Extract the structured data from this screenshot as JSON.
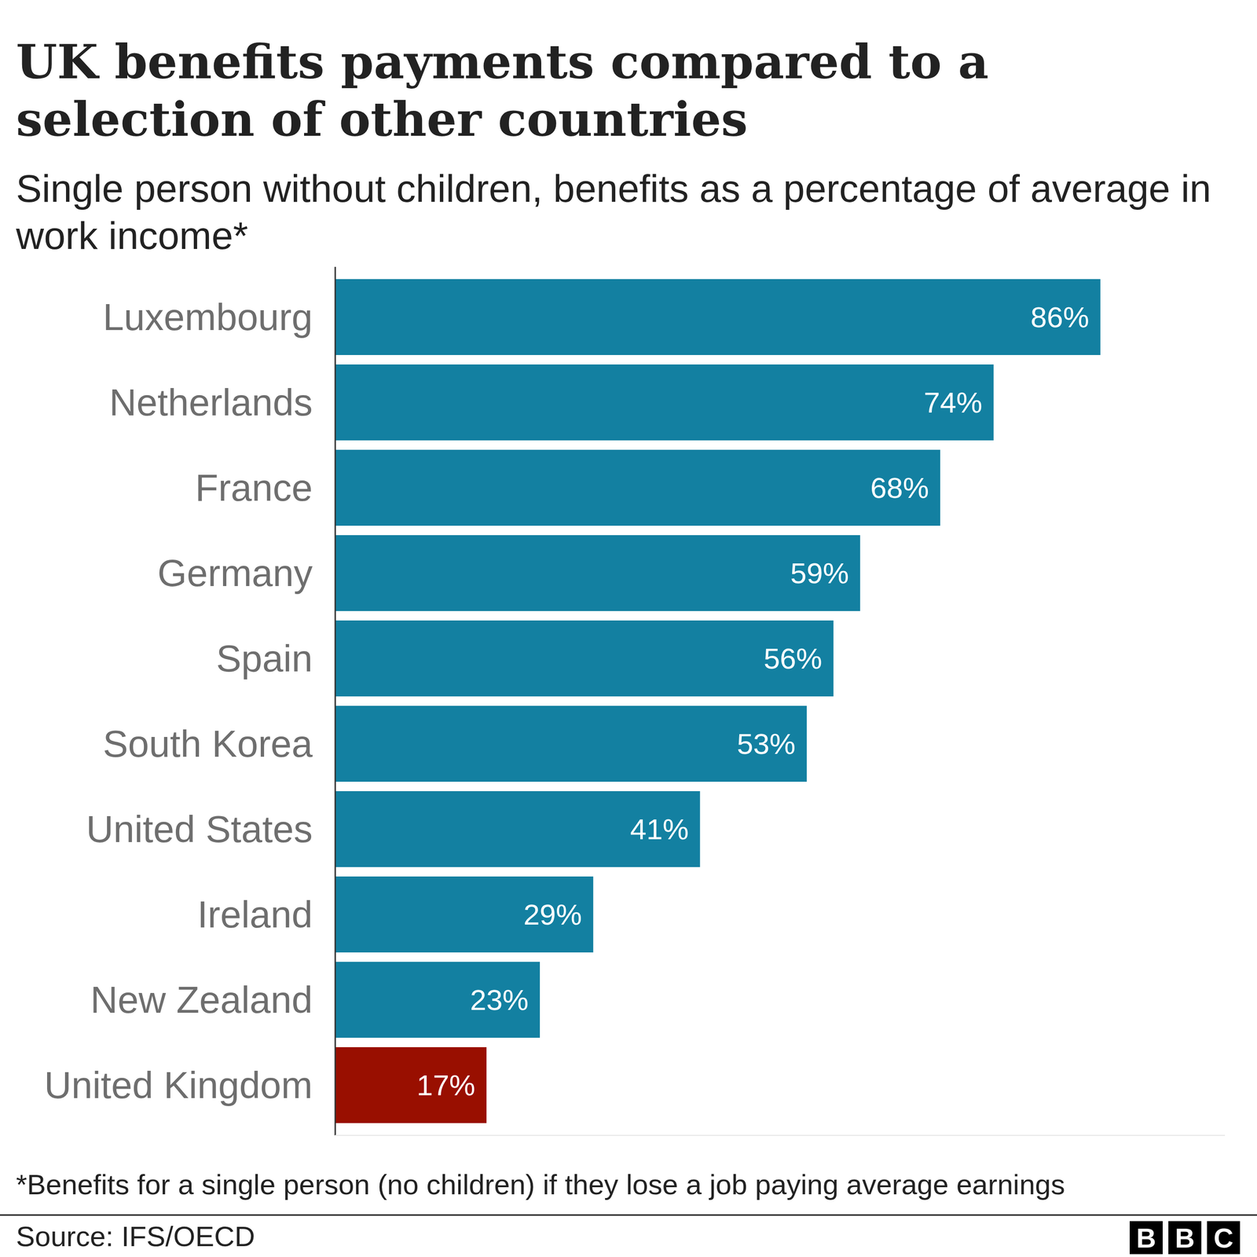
{
  "chart_data": {
    "type": "bar",
    "orientation": "horizontal",
    "title": "UK benefits payments compared to a selection of other countries",
    "subtitle": "Single person without children, benefits as a percentage of average in work income*",
    "categories": [
      "Luxembourg",
      "Netherlands",
      "France",
      "Germany",
      "Spain",
      "South Korea",
      "United States",
      "Ireland",
      "New Zealand",
      "United Kingdom"
    ],
    "values": [
      86,
      74,
      68,
      59,
      56,
      53,
      41,
      29,
      23,
      17
    ],
    "value_labels": [
      "86%",
      "74%",
      "68%",
      "59%",
      "56%",
      "53%",
      "41%",
      "29%",
      "23%",
      "17%"
    ],
    "colors": [
      "#1380a1",
      "#1380a1",
      "#1380a1",
      "#1380a1",
      "#1380a1",
      "#1380a1",
      "#1380a1",
      "#1380a1",
      "#1380a1",
      "#990f00"
    ],
    "xlim": [
      0,
      100
    ],
    "data_labels": true,
    "tick_labels": false,
    "note": "*Benefits for a single person (no children) if they lose a job paying average earnings",
    "source": "Source: IFS/OECD",
    "logo": "BBC"
  }
}
